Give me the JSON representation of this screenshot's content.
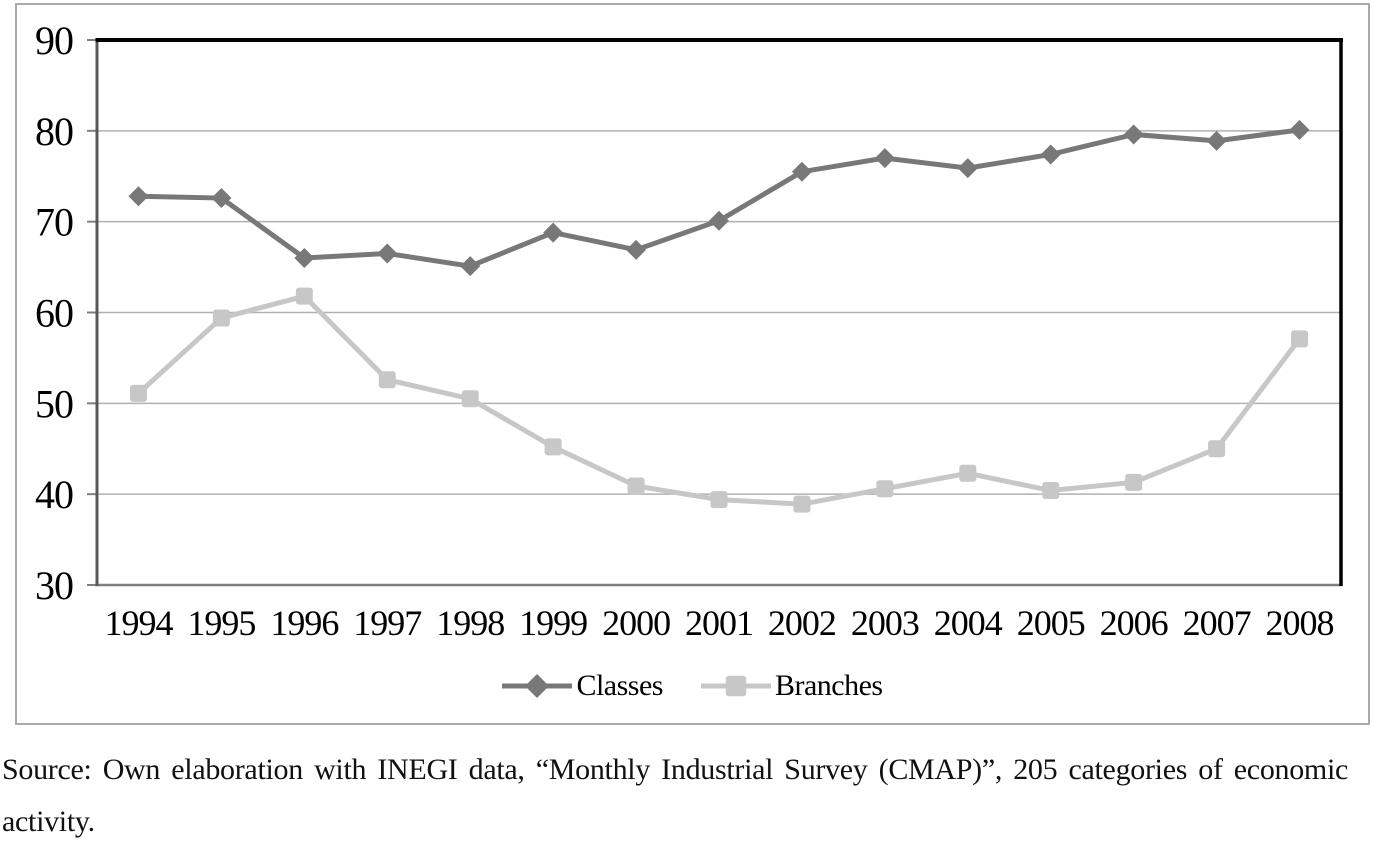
{
  "chart_data": {
    "type": "line",
    "title": "",
    "xlabel": "",
    "ylabel": "",
    "categories": [
      "1994",
      "1995",
      "1996",
      "1997",
      "1998",
      "1999",
      "2000",
      "2001",
      "2002",
      "2003",
      "2004",
      "2005",
      "2006",
      "2007",
      "2008"
    ],
    "series": [
      {
        "name": "Classes",
        "marker": "diamond",
        "color": "#787878",
        "values": [
          72.8,
          72.6,
          66.0,
          66.5,
          65.1,
          68.8,
          66.9,
          70.1,
          75.5,
          77.0,
          75.9,
          77.4,
          79.6,
          78.9,
          80.1
        ]
      },
      {
        "name": "Branches",
        "marker": "square",
        "color": "#c7c7c7",
        "values": [
          51.1,
          59.4,
          61.8,
          52.6,
          50.5,
          45.2,
          40.9,
          39.4,
          38.9,
          40.6,
          42.3,
          40.4,
          41.3,
          45.0,
          57.1
        ]
      }
    ],
    "ylim": [
      30,
      90
    ],
    "yticks": [
      30,
      40,
      50,
      60,
      70,
      80,
      90
    ],
    "grid": true,
    "legend_position": "bottom",
    "axis_colors": {
      "gridline": "#b0b0b0",
      "top_border": "#000000",
      "right_border": "#000000",
      "left_axis": "#595959",
      "bottom_axis": "#808080",
      "tick": "#808080",
      "label": "#000000"
    },
    "frame_border_color": "#a9a9a9"
  },
  "source_note": {
    "line1": "Source: Own elaboration with INEGI data, “Monthly Industrial Survey (CMAP)”, 205 categories of economic",
    "line2": "activity."
  }
}
